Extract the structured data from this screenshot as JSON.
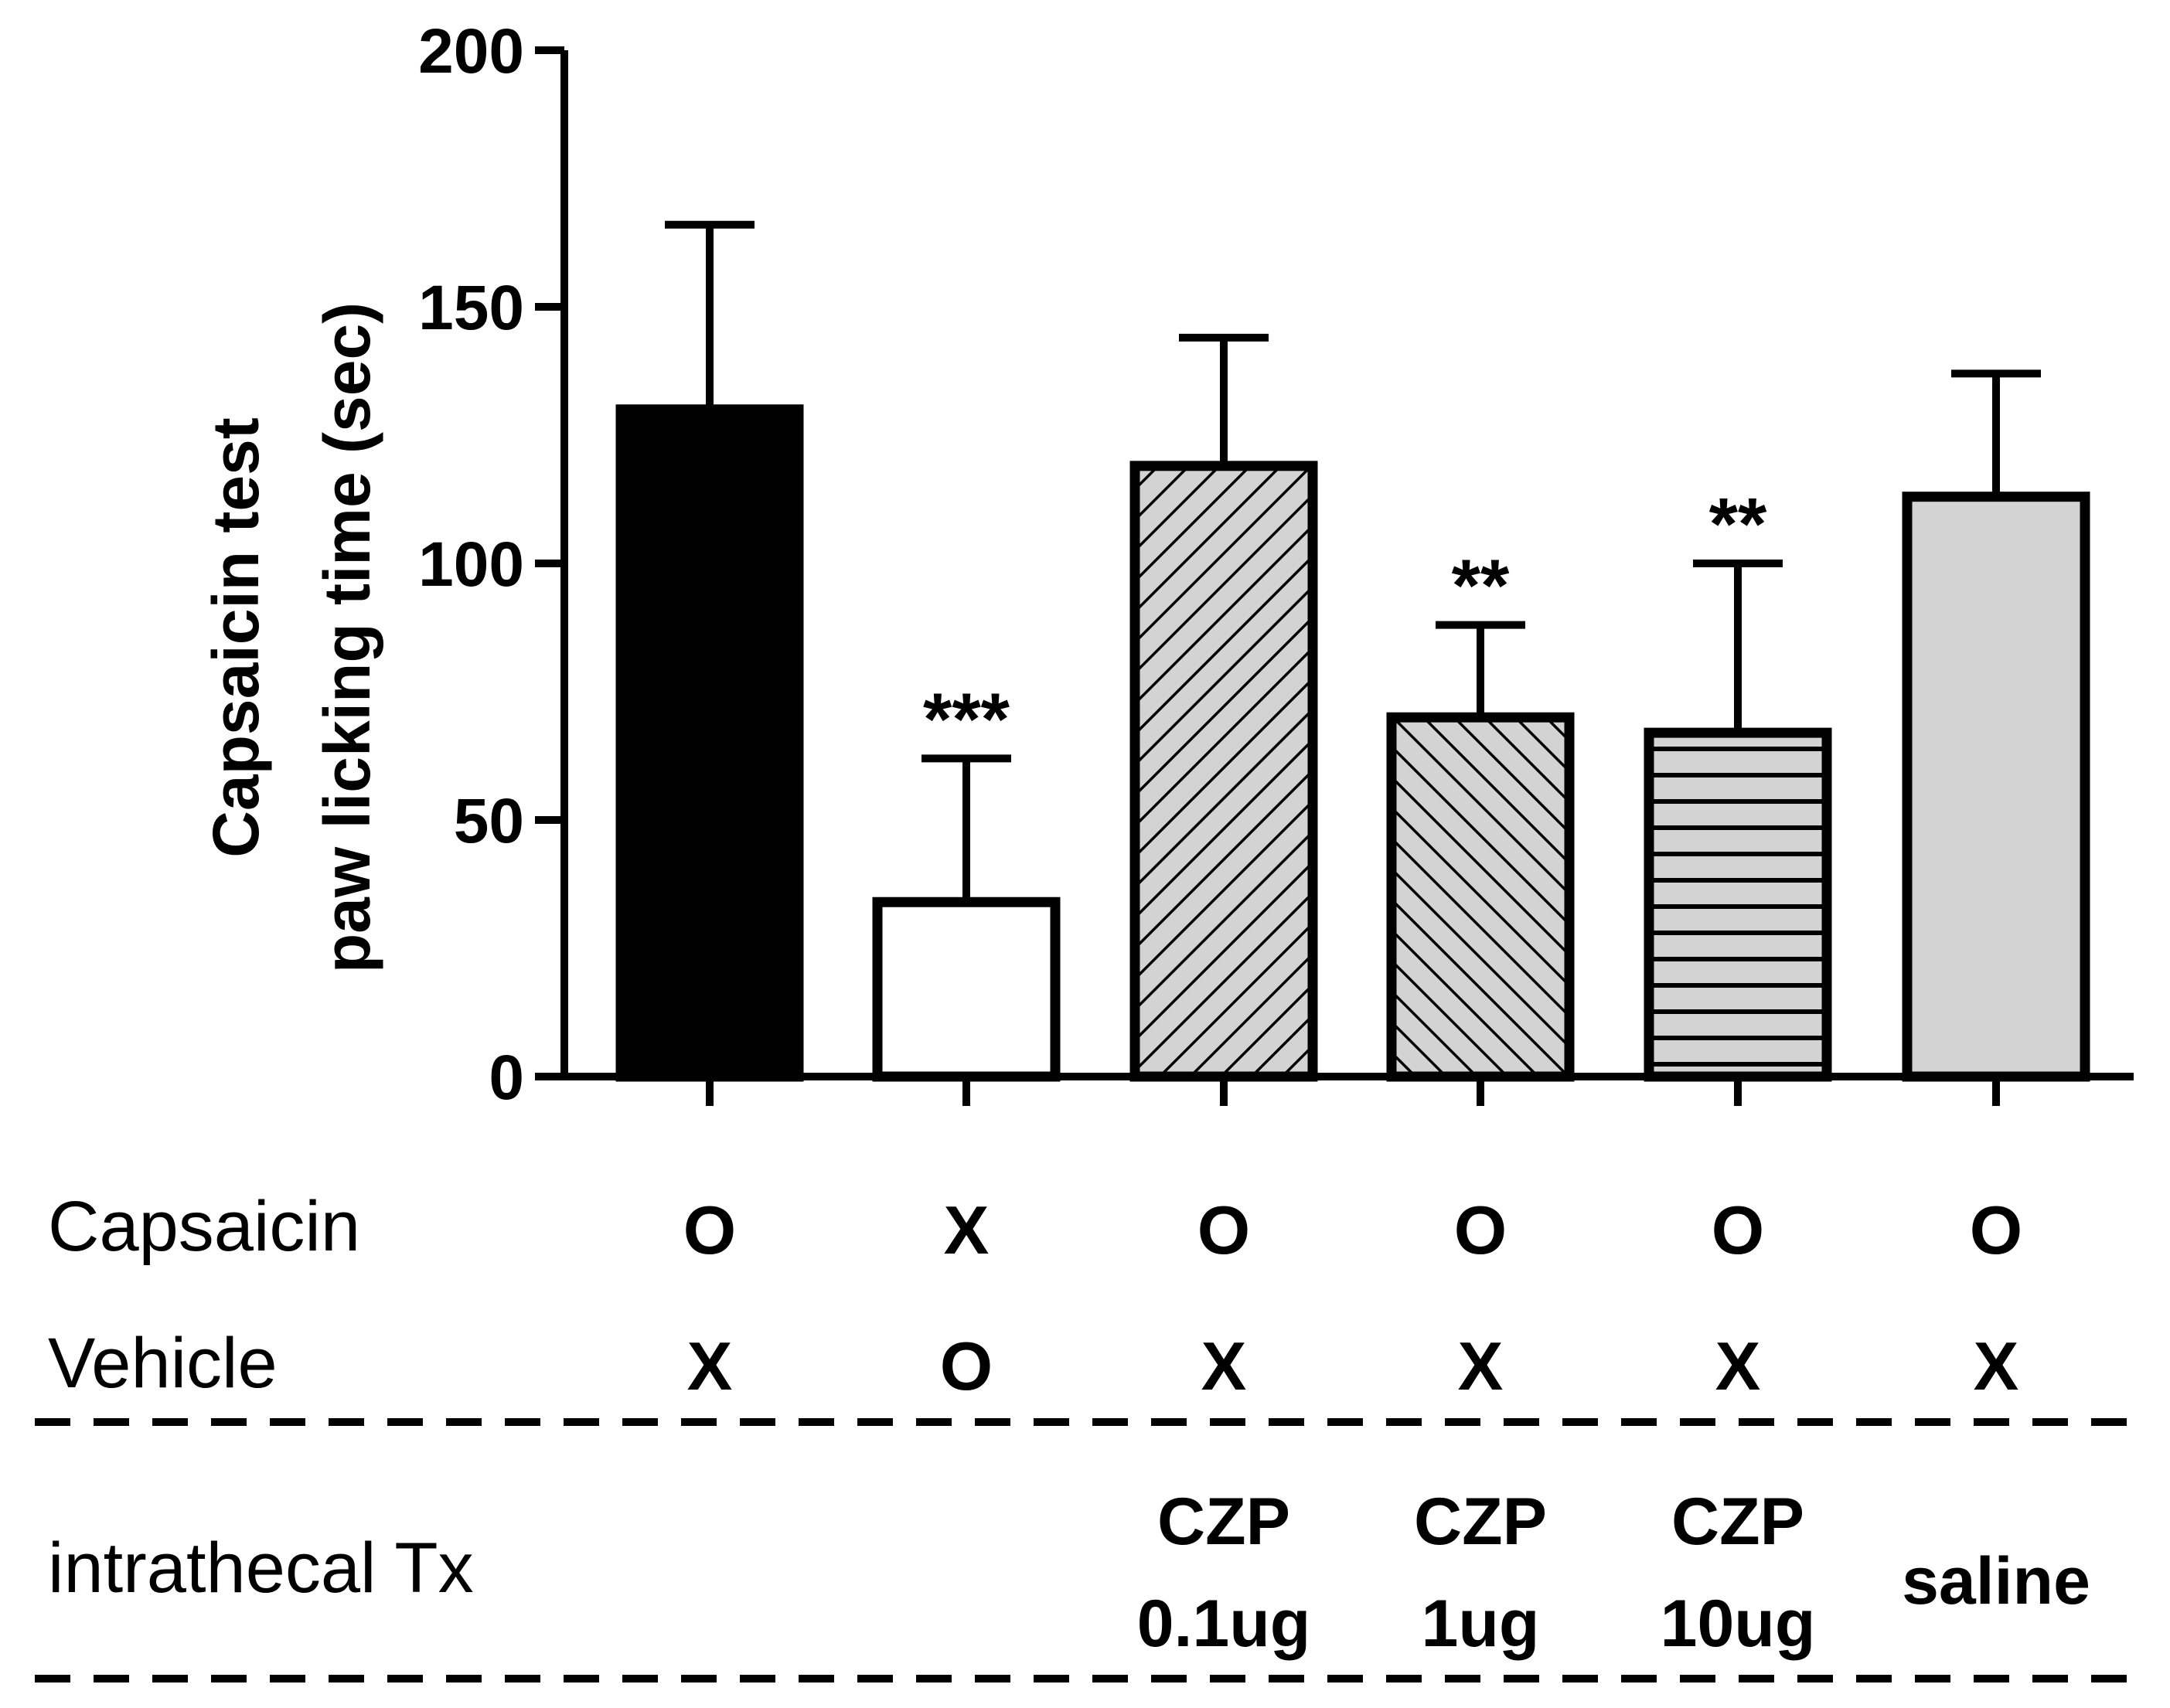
{
  "chart_data": {
    "type": "bar",
    "ylabel_lines": [
      "Capsaicin test",
      "paw licking time (sec)"
    ],
    "ylim": [
      0,
      200
    ],
    "yticks": [
      0,
      50,
      100,
      150,
      200
    ],
    "groups": [
      {
        "value": 130,
        "error": 36,
        "capsaicin": "O",
        "vehicle": "X",
        "tx": [],
        "significance": "",
        "fill": "solid-black"
      },
      {
        "value": 34,
        "error": 28,
        "capsaicin": "X",
        "vehicle": "O",
        "tx": [],
        "significance": "***",
        "fill": "white"
      },
      {
        "value": 119,
        "error": 25,
        "capsaicin": "O",
        "vehicle": "X",
        "tx": [
          "CZP",
          "0.1ug"
        ],
        "significance": "",
        "fill": "diag-forward"
      },
      {
        "value": 70,
        "error": 18,
        "capsaicin": "O",
        "vehicle": "X",
        "tx": [
          "CZP",
          "1ug"
        ],
        "significance": "**",
        "fill": "diag-back"
      },
      {
        "value": 67,
        "error": 33,
        "capsaicin": "O",
        "vehicle": "X",
        "tx": [
          "CZP",
          "10ug"
        ],
        "significance": "**",
        "fill": "horizontal"
      },
      {
        "value": 113,
        "error": 24,
        "capsaicin": "O",
        "vehicle": "X",
        "tx": [
          "saline"
        ],
        "significance": "",
        "fill": "solid-gray"
      }
    ],
    "row_labels": {
      "capsaicin": "Capsaicin",
      "vehicle": "Vehicle",
      "tx": "intrathecal Tx"
    },
    "colors": {
      "axis": "#000000",
      "hatch_bg": "#d3d3d3",
      "gray_fill": "#d3d3d3",
      "white_fill": "#ffffff",
      "black_fill": "#000000"
    }
  }
}
